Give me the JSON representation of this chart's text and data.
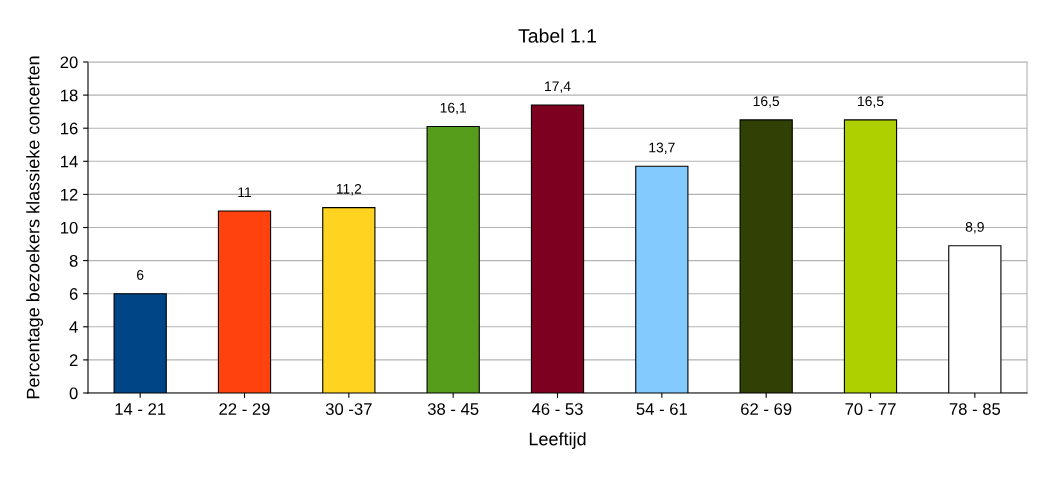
{
  "chart_data": {
    "type": "bar",
    "title": "Tabel 1.1",
    "xlabel": "Leeftijd",
    "ylabel": "Percentage bezoekers klassieke concerten",
    "categories": [
      "14 - 21",
      "22 - 29",
      "30 -37",
      "38 - 45",
      "46 - 53",
      "54 - 61",
      "62 - 69",
      "70 - 77",
      "78 - 85"
    ],
    "values": [
      6,
      11,
      11.2,
      16.1,
      17.4,
      13.7,
      16.5,
      16.5,
      8.9
    ],
    "value_labels": [
      "6",
      "11",
      "11,2",
      "16,1",
      "17,4",
      "13,7",
      "16,5",
      "16,5",
      "8,9"
    ],
    "colors": [
      "#004586",
      "#ff420e",
      "#ffd320",
      "#579d1c",
      "#7e0021",
      "#83caff",
      "#314004",
      "#aecf00",
      "#ffffff"
    ],
    "ylim": [
      0,
      20
    ],
    "yticks": [
      0,
      2,
      4,
      6,
      8,
      10,
      12,
      14,
      16,
      18,
      20
    ],
    "grid": "y"
  }
}
